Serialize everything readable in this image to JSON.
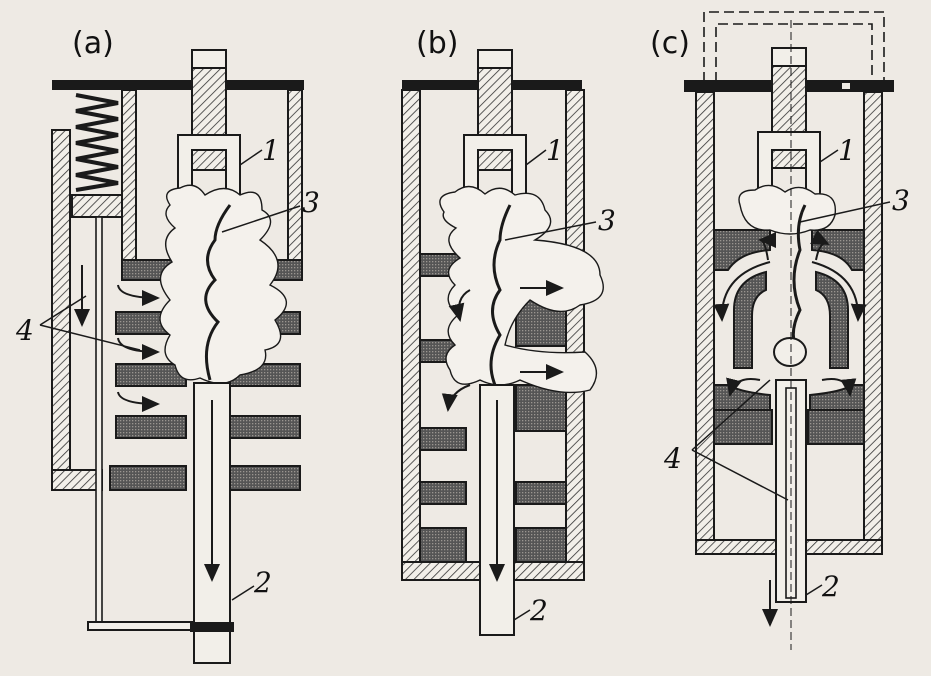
{
  "colors": {
    "background": "#eeeae4",
    "ink": "#1a1a1a",
    "hatch": "#333333"
  },
  "panels": [
    {
      "label": "(a)",
      "callouts": [
        {
          "text": "1"
        },
        {
          "text": "3"
        },
        {
          "text": "4"
        },
        {
          "text": "2"
        }
      ]
    },
    {
      "label": "(b)",
      "callouts": [
        {
          "text": "1"
        },
        {
          "text": "3"
        },
        {
          "text": "2"
        }
      ]
    },
    {
      "label": "(c)",
      "callouts": [
        {
          "text": "1"
        },
        {
          "text": "3"
        },
        {
          "text": "4"
        },
        {
          "text": "2"
        }
      ]
    }
  ]
}
